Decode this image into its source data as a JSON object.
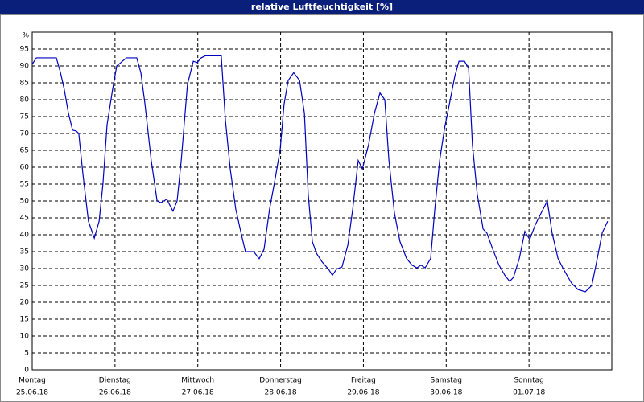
{
  "chart_data": {
    "type": "line",
    "title": "relative Luftfeuchtigkeit [%]",
    "y_unit": "%",
    "xlim": [
      0,
      168
    ],
    "ylim": [
      0,
      100
    ],
    "yticks": [
      0,
      5,
      10,
      15,
      20,
      25,
      30,
      35,
      40,
      45,
      50,
      55,
      60,
      65,
      70,
      75,
      80,
      85,
      90,
      95
    ],
    "xticks": [
      {
        "value": 0,
        "label": "Montag"
      },
      {
        "value": 24,
        "label": "Dienstag"
      },
      {
        "value": 48,
        "label": "Mittwoch"
      },
      {
        "value": 72,
        "label": "Donnerstag"
      },
      {
        "value": 96,
        "label": "Freitag"
      },
      {
        "value": 120,
        "label": "Samstag"
      },
      {
        "value": 144,
        "label": "Sonntag"
      }
    ],
    "xtick_dates": [
      "25.06.18",
      "26.06.18",
      "27.06.18",
      "28.06.18",
      "29.06.18",
      "30.06.18",
      "01.07.18"
    ],
    "grid": true,
    "series": [
      {
        "name": "relative Luftfeuchtigkeit",
        "color": "#0000c0",
        "x": [
          0,
          1.2,
          2.3,
          7,
          8.2,
          9.3,
          10.5,
          11.7,
          12.8,
          13.5,
          14.7,
          16.3,
          18,
          19.4,
          20.5,
          21.7,
          23.3,
          24.5,
          25.7,
          27.3,
          30.3,
          31.5,
          32.7,
          34.5,
          36.2,
          37.3,
          39,
          40.8,
          42,
          43.2,
          45,
          46.7,
          47.8,
          49,
          50.2,
          54.8,
          56,
          57.4,
          59,
          60.7,
          61.8,
          64.2,
          65.8,
          67.2,
          68.8,
          70.5,
          71.9,
          73,
          74.2,
          75.8,
          77.5,
          78.9,
          80,
          81.2,
          82.4,
          84,
          85.9,
          87,
          88.2,
          89.8,
          91.5,
          92.9,
          94.5,
          95.7,
          97.5,
          99.2,
          100.8,
          102.2,
          103.4,
          105,
          106.6,
          108.5,
          110.1,
          111.5,
          112.7,
          113.9,
          115.5,
          116.7,
          118.1,
          119.5,
          120.9,
          122.5,
          123.7,
          125.3,
          126.5,
          127.6,
          129,
          130.7,
          131.8,
          133.5,
          135.3,
          137,
          138.4,
          139.5,
          141.2,
          142.8,
          144.2,
          145.8,
          147.5,
          149.3,
          150.7,
          152.4,
          154,
          156.3,
          158.2,
          160.3,
          162.2,
          163.8,
          165.2,
          166.8
        ],
        "values": [
          90.5,
          92.4,
          92.4,
          92.4,
          88,
          83,
          76,
          71,
          70.7,
          70,
          58,
          44,
          39,
          44,
          55,
          72.6,
          83,
          90,
          91,
          92.4,
          92.4,
          88,
          78.6,
          62,
          50,
          49.5,
          50.5,
          47,
          50,
          62,
          84.5,
          91.4,
          91,
          92.4,
          93,
          93,
          74,
          59.5,
          47.6,
          39.8,
          35,
          35,
          32.9,
          35.7,
          47.6,
          57,
          65.5,
          78.6,
          85.7,
          88,
          85.7,
          76,
          52,
          38,
          34.5,
          32,
          29.8,
          28,
          29.8,
          30.5,
          37,
          47.6,
          62,
          59.5,
          66.7,
          76,
          82,
          80,
          62,
          46.4,
          38,
          33,
          31,
          30.2,
          31,
          30.2,
          33,
          47.6,
          62,
          71.4,
          78.6,
          87,
          91.4,
          91.4,
          89.3,
          66.7,
          52,
          41.7,
          40.5,
          35.7,
          31,
          28,
          26.2,
          27.4,
          33,
          41,
          38.6,
          42.9,
          46.4,
          50,
          40.5,
          33,
          29.8,
          25.7,
          23.8,
          23.1,
          25,
          33,
          40.5,
          44
        ]
      }
    ]
  }
}
